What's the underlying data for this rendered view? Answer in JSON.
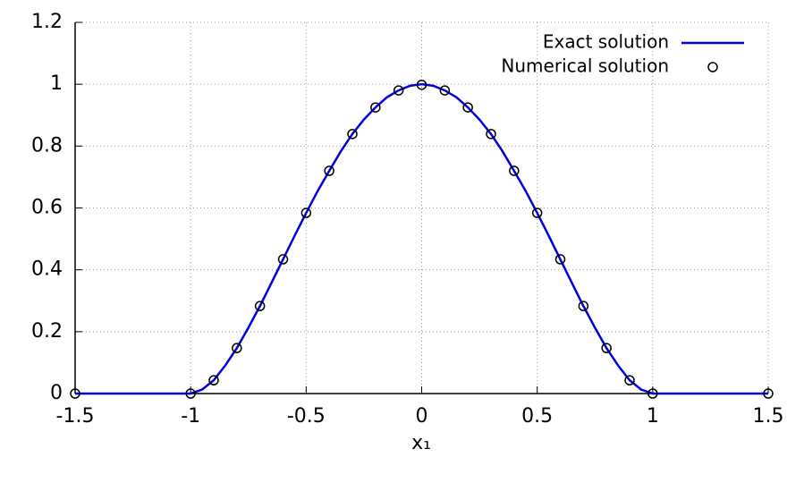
{
  "chart_data": {
    "type": "line",
    "xlabel": "x₁",
    "xlim": [
      -1.5,
      1.5
    ],
    "xticks": [
      -1.5,
      -1,
      -0.5,
      0,
      0.5,
      1,
      1.5
    ],
    "ylim": [
      0,
      1.2
    ],
    "yticks": [
      0,
      0.2,
      0.4,
      0.6,
      0.8,
      1,
      1.2
    ],
    "grid": true,
    "legend": "top-right",
    "series": [
      {
        "name": "Exact solution",
        "color": "#0000e0",
        "style": "line",
        "x": [
          -1.5,
          -1,
          -0.95,
          -0.9,
          -0.85,
          -0.8,
          -0.75,
          -0.7,
          -0.65,
          -0.6,
          -0.55,
          -0.5,
          -0.45,
          -0.4,
          -0.35,
          -0.3,
          -0.25,
          -0.2,
          -0.15,
          -0.1,
          -0.05,
          0,
          0.05,
          0.1,
          0.15,
          0.2,
          0.25,
          0.3,
          0.35,
          0.4,
          0.45,
          0.5,
          0.55,
          0.6,
          0.65,
          0.7,
          0.75,
          0.8,
          0.85,
          0.9,
          0.95,
          1,
          1.5
        ],
        "values": [
          0,
          0,
          0.013,
          0.043,
          0.091,
          0.147,
          0.213,
          0.283,
          0.358,
          0.434,
          0.51,
          0.584,
          0.655,
          0.72,
          0.783,
          0.839,
          0.886,
          0.925,
          0.958,
          0.98,
          0.995,
          1,
          0.995,
          0.98,
          0.958,
          0.925,
          0.886,
          0.839,
          0.783,
          0.72,
          0.655,
          0.584,
          0.51,
          0.434,
          0.358,
          0.283,
          0.213,
          0.147,
          0.091,
          0.043,
          0.013,
          0,
          0
        ]
      },
      {
        "name": "Numerical solution",
        "color": "#000000",
        "style": "points",
        "x": [
          -1.5,
          -1,
          -0.9,
          -0.8,
          -0.7,
          -0.6,
          -0.5,
          -0.4,
          -0.3,
          -0.2,
          -0.1,
          0,
          0.1,
          0.2,
          0.3,
          0.4,
          0.5,
          0.6,
          0.7,
          0.8,
          0.9,
          1,
          1.5
        ],
        "values": [
          0,
          0,
          0.043,
          0.147,
          0.283,
          0.434,
          0.584,
          0.72,
          0.839,
          0.925,
          0.98,
          0.998,
          0.98,
          0.925,
          0.839,
          0.72,
          0.584,
          0.434,
          0.283,
          0.147,
          0.043,
          0,
          0
        ]
      }
    ]
  }
}
